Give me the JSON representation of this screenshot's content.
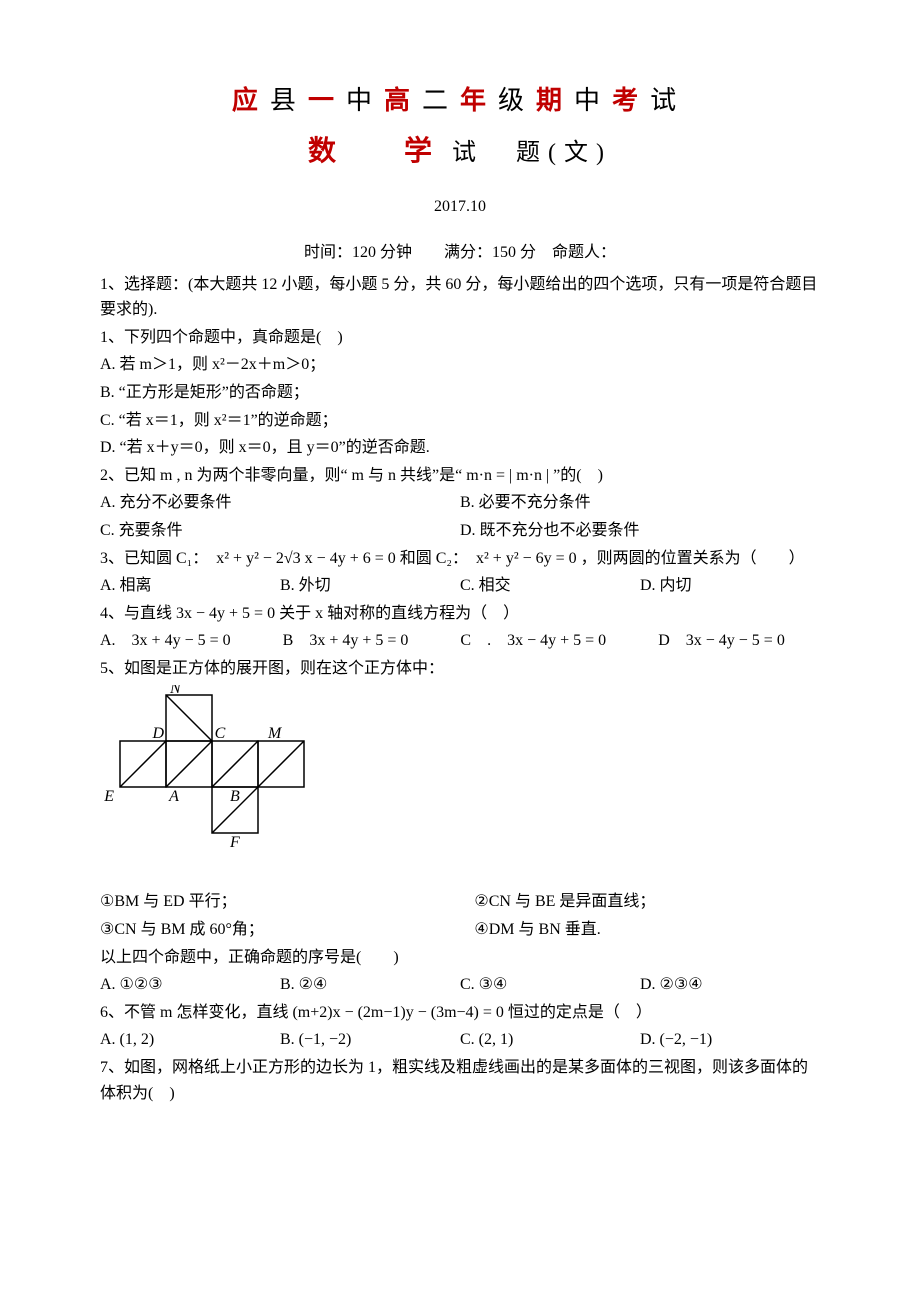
{
  "header": {
    "title_line1_parts": [
      {
        "t": "应",
        "c": "red"
      },
      {
        "t": "县",
        "c": "black"
      },
      {
        "t": "一",
        "c": "red"
      },
      {
        "t": "中",
        "c": "black"
      },
      {
        "t": "高",
        "c": "red"
      },
      {
        "t": "二",
        "c": "black"
      },
      {
        "t": "年",
        "c": "red"
      },
      {
        "t": "级",
        "c": "black"
      },
      {
        "t": "期",
        "c": "red"
      },
      {
        "t": "中",
        "c": "black"
      },
      {
        "t": "考",
        "c": "red"
      },
      {
        "t": "试",
        "c": "black"
      }
    ],
    "title_line2_subject": "数　学",
    "title_line2_suffix": "试　题(文)",
    "date": "2017.10",
    "meta": "时间：120 分钟　　满分：150 分　命题人："
  },
  "section1_intro": "1、选择题：(本大题共 12 小题，每小题 5 分，共 60 分，每小题给出的四个选项，只有一项是符合题目要求的).",
  "q1": {
    "stem": "1、下列四个命题中，真命题是(　)",
    "A": "A. 若 m＞1，则 x²－2x＋m＞0；",
    "B": "B. “正方形是矩形”的否命题；",
    "C": "C. “若 x＝1，则 x²＝1”的逆命题；",
    "D": "D. “若 x＋y＝0，则 x＝0，且 y＝0”的逆否命题."
  },
  "q2": {
    "stem": "2、已知 m , n 为两个非零向量，则“ m 与 n 共线”是“ m·n = | m·n | ”的(　)",
    "A": "A. 充分不必要条件",
    "B": "B. 必要不充分条件",
    "C": "C. 充要条件",
    "D": "D. 既不充分也不必要条件"
  },
  "q3": {
    "stem": "3、已知圆 C₁：　x² + y² − 2√3 x − 4y + 6 = 0 和圆 C₂：　x² + y² − 6y = 0 ，则两圆的位置关系为（　　）",
    "A": "A. 相离",
    "B": "B. 外切",
    "C": "C. 相交",
    "D": "D. 内切"
  },
  "q4": {
    "stem": "4、与直线 3x − 4y + 5 = 0 关于 x 轴对称的直线方程为（　）",
    "A": "A.　3x + 4y − 5 = 0",
    "B": "B　3x + 4y + 5 = 0",
    "C": "C　.　3x − 4y + 5 = 0",
    "D": "D　3x − 4y − 5 = 0"
  },
  "q5": {
    "stem": "5、如图是正方体的展开图，则在这个正方体中：",
    "s1": "①BM 与 ED 平行；",
    "s2": "②CN 与 BE 是异面直线；",
    "s3": "③CN 与 BM 成 60°角；",
    "s4": "④DM 与 BN 垂直.",
    "ask": "以上四个命题中，正确命题的序号是(　　)",
    "A": "A. ①②③",
    "B": "B. ②④",
    "C": "C. ③④",
    "D": "D. ②③④",
    "diagram": {
      "cell": 46,
      "labels": {
        "N": "N",
        "D": "D",
        "C": "C",
        "M": "M",
        "E": "E",
        "A": "A",
        "B": "B",
        "F": "F"
      },
      "stroke": "#000000",
      "fill": "#ffffff",
      "label_fontsize": 16
    }
  },
  "q6": {
    "stem": "6、不管 m 怎样变化，直线 (m+2)x − (2m−1)y − (3m−4) = 0 恒过的定点是（　）",
    "A": "A. (1, 2)",
    "B": "B. (−1, −2)",
    "C": "C. (2, 1)",
    "D": "D. (−2, −1)"
  },
  "q7": {
    "stem": "7、如图，网格纸上小正方形的边长为 1，粗实线及粗虚线画出的是某多面体的三视图，则该多面体的体积为(　)"
  },
  "colors": {
    "red": "#c00000",
    "black": "#000000",
    "bg": "#ffffff"
  }
}
